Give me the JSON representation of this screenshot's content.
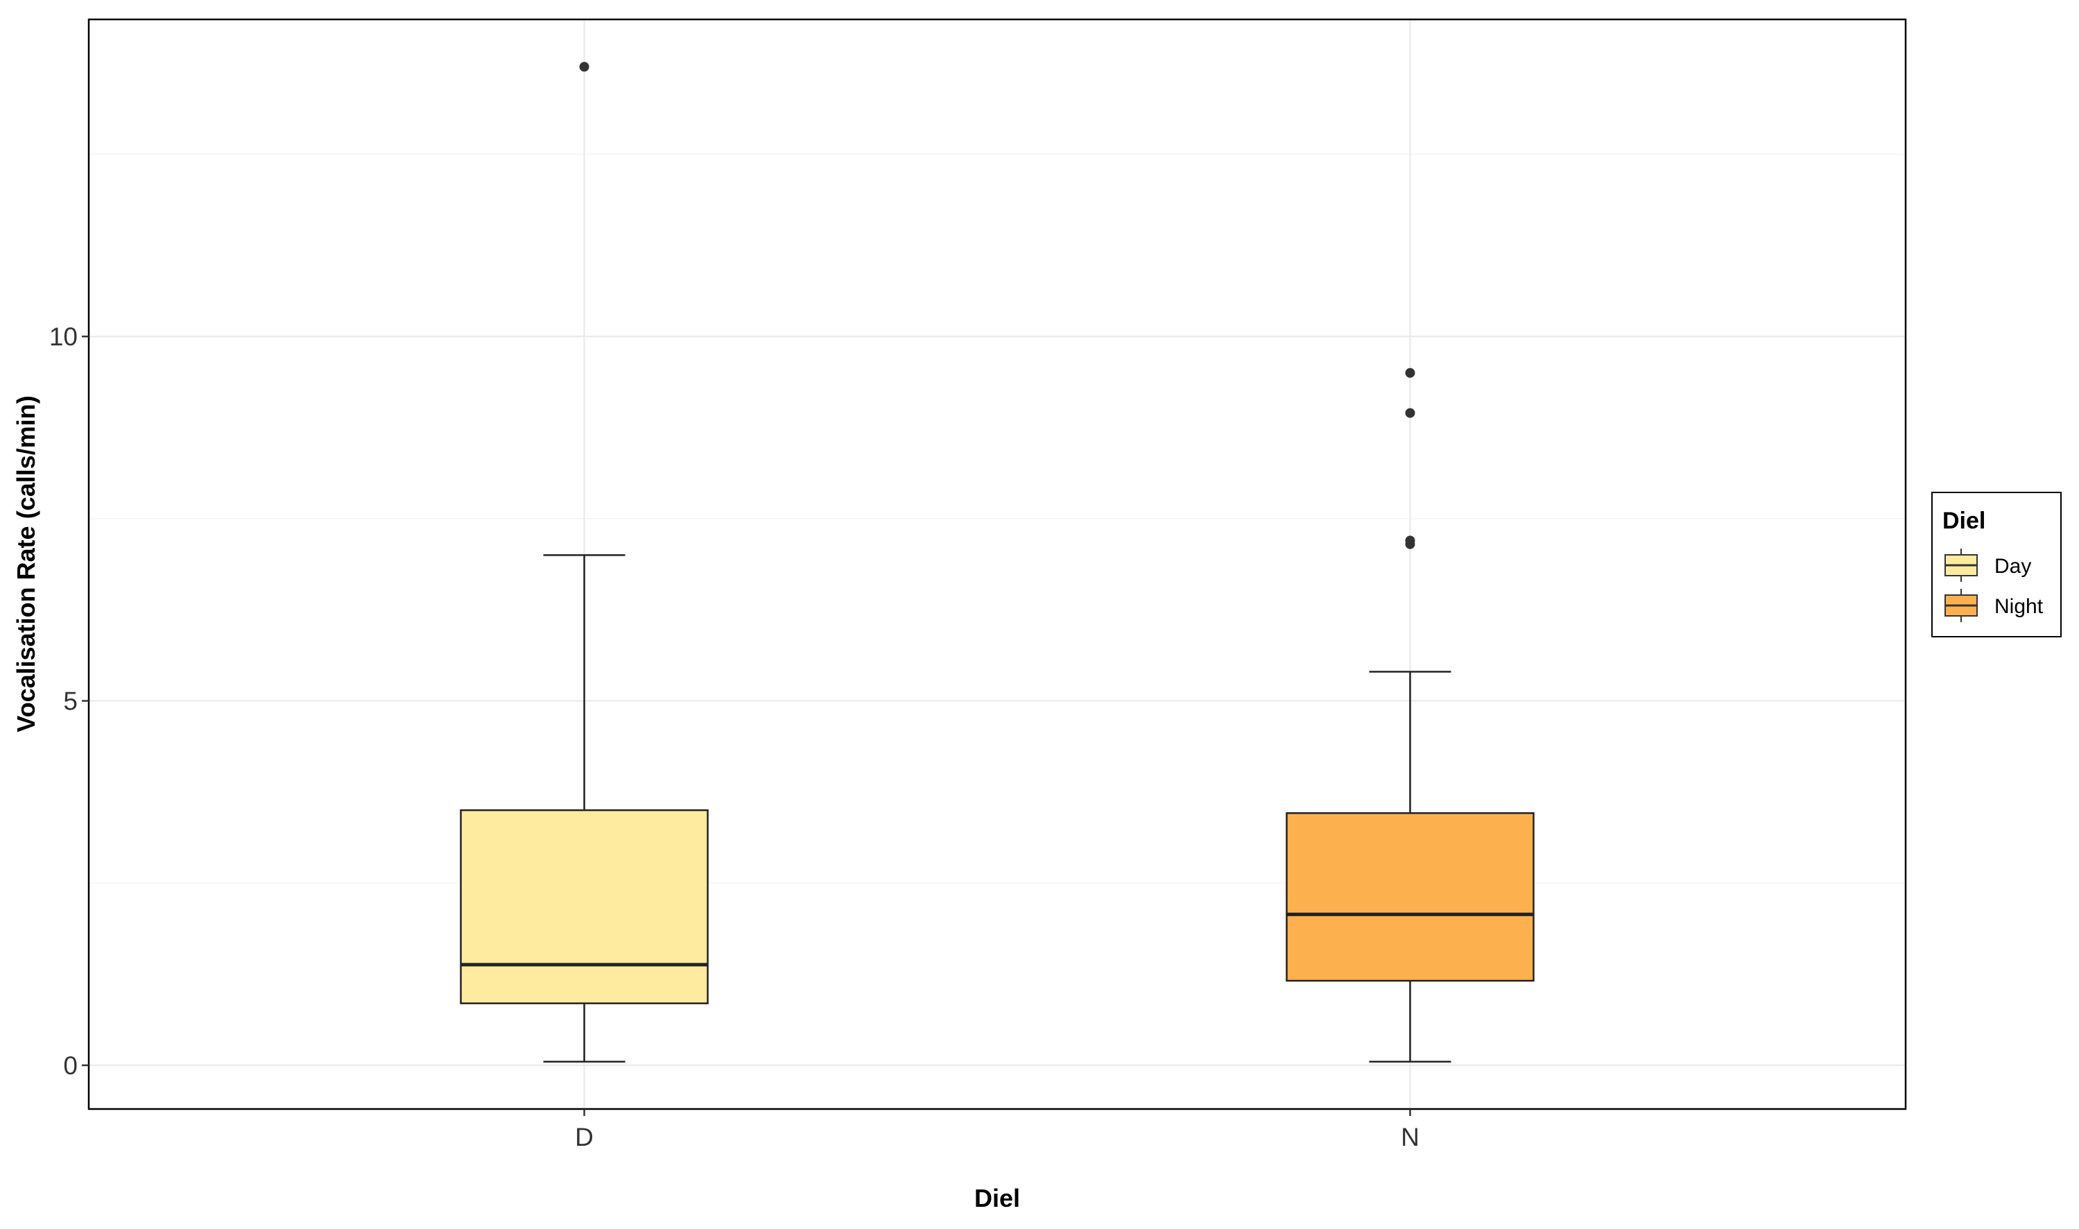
{
  "chart_data": {
    "type": "box",
    "xlabel": "Diel",
    "ylabel": "Vocalisation Rate (calls/min)",
    "ylim": [
      -0.6,
      14.35
    ],
    "yticks": [
      0,
      5,
      10
    ],
    "minor_yticks": [
      2.5,
      7.5,
      12.5
    ],
    "grid": true,
    "legend": {
      "title": "Diel",
      "position": "right",
      "entries": [
        {
          "label": "Day",
          "color": "#FFEBA0"
        },
        {
          "label": "Night",
          "color": "#FDB14E"
        }
      ]
    },
    "categories": [
      "D",
      "N"
    ],
    "boxes": [
      {
        "category": "D",
        "whisker_low": 0.05,
        "q1": 0.85,
        "median": 1.38,
        "q3": 3.5,
        "whisker_high": 7.0,
        "outliers": [
          13.7
        ],
        "color": "#FFEBA0"
      },
      {
        "category": "N",
        "whisker_low": 0.05,
        "q1": 1.16,
        "median": 2.07,
        "q3": 3.46,
        "whisker_high": 5.4,
        "outliers": [
          9.5,
          8.95,
          7.2,
          7.15
        ],
        "color": "#FDB14E"
      }
    ]
  }
}
